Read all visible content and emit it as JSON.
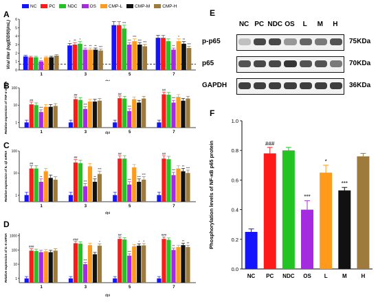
{
  "labels": {
    "A": "A",
    "B": "B",
    "C": "C",
    "D": "D",
    "E": "E",
    "F": "F"
  },
  "groups": [
    {
      "name": "NC",
      "color": "#1414ff"
    },
    {
      "name": "PC",
      "color": "#ff1a1a"
    },
    {
      "name": "NDC",
      "color": "#22c322"
    },
    {
      "name": "OS",
      "color": "#a52be0"
    },
    {
      "name": "CMP-L",
      "color": "#ff9a1a"
    },
    {
      "name": "CMP-M",
      "color": "#111111"
    },
    {
      "name": "CMP-H",
      "color": "#9e7a3c"
    }
  ],
  "western": {
    "lanes": [
      "NC",
      "PC",
      "NDC",
      "OS",
      "L",
      "M",
      "H"
    ],
    "rows": [
      {
        "name": "p-p65",
        "kda": "75KDa",
        "intensity": [
          0.25,
          0.85,
          0.85,
          0.45,
          0.7,
          0.6,
          0.8
        ]
      },
      {
        "name": "p65",
        "kda": "70KDa",
        "intensity": [
          0.8,
          0.85,
          0.85,
          0.95,
          0.8,
          0.8,
          0.6
        ]
      },
      {
        "name": "GAPDH",
        "kda": "36KDa",
        "intensity": [
          0.9,
          0.9,
          0.9,
          0.9,
          0.9,
          0.9,
          0.9
        ]
      }
    ]
  },
  "chart_data": [
    {
      "panel": "A",
      "type": "bar",
      "ylabel": "Viral titer (log(EID50)/mL)",
      "xlabel": "dpi",
      "categories": [
        "1",
        "3",
        "5",
        "7"
      ],
      "yticks": [
        "0",
        "1",
        "2",
        "3",
        "4",
        "5",
        "6"
      ],
      "ylim": [
        0,
        6
      ],
      "dashed_line": 0.7,
      "series": [
        {
          "name": "NC",
          "values": [
            1.6,
            2.9,
            5.3,
            3.8
          ]
        },
        {
          "name": "PC",
          "values": [
            1.5,
            3.0,
            5.3,
            3.8
          ]
        },
        {
          "name": "NDC",
          "values": [
            1.5,
            3.1,
            4.9,
            3.4
          ]
        },
        {
          "name": "OS",
          "values": [
            1.0,
            2.4,
            3.0,
            2.4
          ]
        },
        {
          "name": "CMP-L",
          "values": [
            1.5,
            2.4,
            3.4,
            3.4
          ]
        },
        {
          "name": "CMP-M",
          "values": [
            1.5,
            2.4,
            3.0,
            3.1
          ]
        },
        {
          "name": "CMP-H",
          "values": [
            1.7,
            2.3,
            2.8,
            2.6
          ]
        }
      ],
      "sig": [
        [
          "",
          "",
          "",
          "*",
          "",
          "",
          ""
        ],
        [
          "*",
          "**",
          "*",
          "**",
          "**",
          "**",
          "***"
        ],
        [
          "",
          "",
          "***",
          "***",
          "***",
          "***",
          "***"
        ],
        [
          "",
          "",
          "",
          "**",
          "*",
          "**",
          "***"
        ]
      ]
    },
    {
      "panel": "B",
      "type": "bar",
      "ylabel": "Relative expression of TNF-α mRNA",
      "xlabel": "dpi",
      "categories": [
        "1",
        "3",
        "5",
        "7"
      ],
      "yticks": [
        "1",
        "10",
        "100"
      ],
      "ylim": [
        0.5,
        100
      ],
      "log": true,
      "series": [
        {
          "name": "NC",
          "values": [
            1,
            1,
            1,
            1
          ]
        },
        {
          "name": "PC",
          "values": [
            11,
            22,
            25,
            42
          ]
        },
        {
          "name": "NDC",
          "values": [
            10,
            20,
            24,
            40
          ]
        },
        {
          "name": "OS",
          "values": [
            4,
            6,
            4.5,
            14
          ]
        },
        {
          "name": "CMP-L",
          "values": [
            8,
            16,
            22,
            30
          ]
        },
        {
          "name": "CMP-M",
          "values": [
            8,
            16,
            14,
            18
          ]
        },
        {
          "name": "CMP-H",
          "values": [
            9,
            18,
            24,
            24
          ]
        }
      ],
      "sig": [
        [
          "",
          "##",
          "",
          "***",
          "",
          "",
          ""
        ],
        [
          "",
          "##",
          "",
          "***",
          "",
          "",
          ""
        ],
        [
          "",
          "##",
          "",
          "***",
          "",
          "",
          ""
        ],
        [
          "",
          "##",
          "",
          "***",
          "",
          "",
          ""
        ]
      ]
    },
    {
      "panel": "C",
      "type": "bar",
      "ylabel": "Relative expression of IL-1β mRNA",
      "xlabel": "dpi",
      "categories": [
        "1",
        "3",
        "5",
        "7"
      ],
      "yticks": [
        "1",
        "10",
        "100"
      ],
      "ylim": [
        0.5,
        100
      ],
      "log": true,
      "series": [
        {
          "name": "NC",
          "values": [
            1,
            1,
            1,
            1
          ]
        },
        {
          "name": "PC",
          "values": [
            16,
            30,
            45,
            45
          ]
        },
        {
          "name": "NDC",
          "values": [
            16,
            28,
            45,
            42
          ]
        },
        {
          "name": "OS",
          "values": [
            4,
            2.5,
            3,
            8
          ]
        },
        {
          "name": "CMP-L",
          "values": [
            12,
            20,
            18,
            16
          ]
        },
        {
          "name": "CMP-M",
          "values": [
            6,
            4,
            4,
            12
          ]
        },
        {
          "name": "CMP-H",
          "values": [
            5,
            9,
            5,
            10
          ]
        }
      ],
      "sig": [
        [
          "",
          "##",
          "",
          "**",
          "",
          "",
          ""
        ],
        [
          "",
          "##",
          "",
          "***",
          "",
          "**",
          "***"
        ],
        [
          "",
          "##",
          "",
          "***",
          "",
          "***",
          "***"
        ],
        [
          "",
          "##",
          "",
          "***",
          "",
          "**",
          "***"
        ]
      ]
    },
    {
      "panel": "D",
      "type": "bar",
      "ylabel": "Relative expression of IL-6 mRNA",
      "xlabel": "dpi",
      "categories": [
        "1",
        "3",
        "5",
        "7"
      ],
      "yticks": [
        "1",
        "10",
        "100",
        "1000"
      ],
      "ylim": [
        0.5,
        1500
      ],
      "log": true,
      "series": [
        {
          "name": "NC",
          "values": [
            1,
            1,
            1,
            1
          ]
        },
        {
          "name": "PC",
          "values": [
            90,
            300,
            600,
            600
          ]
        },
        {
          "name": "NDC",
          "values": [
            85,
            280,
            550,
            520
          ]
        },
        {
          "name": "OS",
          "values": [
            70,
            10,
            40,
            100
          ]
        },
        {
          "name": "CMP-L",
          "values": [
            80,
            220,
            180,
            160
          ]
        },
        {
          "name": "CMP-M",
          "values": [
            70,
            50,
            200,
            220
          ]
        },
        {
          "name": "CMP-H",
          "values": [
            90,
            200,
            210,
            160
          ]
        }
      ],
      "sig": [
        [
          "",
          "###",
          "",
          "",
          "",
          "",
          ""
        ],
        [
          "",
          "###",
          "",
          "***",
          "",
          "",
          "*"
        ],
        [
          "",
          "##",
          "",
          "***",
          "",
          "*",
          "*"
        ],
        [
          "",
          "###",
          "",
          "**",
          "",
          "**",
          "**"
        ]
      ]
    },
    {
      "panel": "F",
      "type": "bar",
      "ylabel": "Phosphorylation levels of NF-κB p65 protein",
      "categories": [
        "NC",
        "PC",
        "NDC",
        "OS",
        "L",
        "M",
        "H"
      ],
      "values": [
        0.25,
        0.78,
        0.8,
        0.4,
        0.65,
        0.53,
        0.76
      ],
      "errors": [
        0.02,
        0.04,
        0.02,
        0.06,
        0.05,
        0.02,
        0.02
      ],
      "colors": [
        "#1414ff",
        "#ff1a1a",
        "#22c322",
        "#a52be0",
        "#ff9a1a",
        "#111111",
        "#9e7a3c"
      ],
      "yticks": [
        "0.0",
        "0.2",
        "0.4",
        "0.6",
        "0.8",
        "1.0"
      ],
      "ylim": [
        0,
        1.0
      ],
      "sig": [
        "",
        "###",
        "",
        "***",
        "*",
        "***",
        ""
      ]
    }
  ]
}
